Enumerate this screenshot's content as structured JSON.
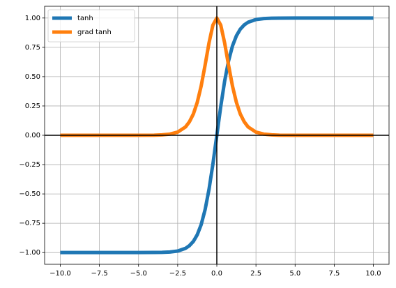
{
  "chart_data": {
    "type": "line",
    "x": [
      -10,
      -8,
      -6,
      -5,
      -4,
      -3.5,
      -3,
      -2.5,
      -2,
      -1.75,
      -1.5,
      -1.25,
      -1,
      -0.75,
      -0.5,
      -0.25,
      0,
      0.25,
      0.5,
      0.75,
      1,
      1.25,
      1.5,
      1.75,
      2,
      2.5,
      3,
      3.5,
      4,
      5,
      6,
      8,
      10
    ],
    "series": [
      {
        "name": "tanh",
        "color": "#1f77b4",
        "values": [
          -1,
          -1,
          -1,
          -1,
          -0.999,
          -0.998,
          -0.995,
          -0.987,
          -0.964,
          -0.941,
          -0.905,
          -0.848,
          -0.762,
          -0.635,
          -0.462,
          -0.245,
          0,
          0.245,
          0.462,
          0.635,
          0.762,
          0.848,
          0.905,
          0.941,
          0.964,
          0.987,
          0.995,
          0.998,
          0.999,
          1,
          1,
          1,
          1
        ]
      },
      {
        "name": "grad tanh",
        "color": "#ff7f0e",
        "values": [
          0,
          0,
          0,
          0,
          0.001,
          0.004,
          0.01,
          0.027,
          0.071,
          0.115,
          0.181,
          0.281,
          0.42,
          0.597,
          0.787,
          0.94,
          1,
          0.94,
          0.787,
          0.597,
          0.42,
          0.281,
          0.181,
          0.115,
          0.071,
          0.027,
          0.01,
          0.004,
          0.001,
          0,
          0,
          0,
          0
        ]
      }
    ],
    "xlim": [
      -11,
      11
    ],
    "ylim": [
      -1.1,
      1.1
    ],
    "xticks": [
      {
        "value": -10,
        "label": "−10.0"
      },
      {
        "value": -7.5,
        "label": "−7.5"
      },
      {
        "value": -5,
        "label": "−5.0"
      },
      {
        "value": -2.5,
        "label": "−2.5"
      },
      {
        "value": 0,
        "label": "0.0"
      },
      {
        "value": 2.5,
        "label": "2.5"
      },
      {
        "value": 5,
        "label": "5.0"
      },
      {
        "value": 7.5,
        "label": "7.5"
      },
      {
        "value": 10,
        "label": "10.0"
      }
    ],
    "yticks": [
      {
        "value": -1,
        "label": "−1.00"
      },
      {
        "value": -0.75,
        "label": "−0.75"
      },
      {
        "value": -0.5,
        "label": "−0.50"
      },
      {
        "value": -0.25,
        "label": "−0.25"
      },
      {
        "value": 0,
        "label": "0.00"
      },
      {
        "value": 0.25,
        "label": "0.25"
      },
      {
        "value": 0.5,
        "label": "0.50"
      },
      {
        "value": 0.75,
        "label": "0.75"
      },
      {
        "value": 1,
        "label": "1.00"
      }
    ],
    "hlines": [
      0
    ],
    "vlines": [
      0
    ],
    "grid": true,
    "legend": "upper left"
  }
}
